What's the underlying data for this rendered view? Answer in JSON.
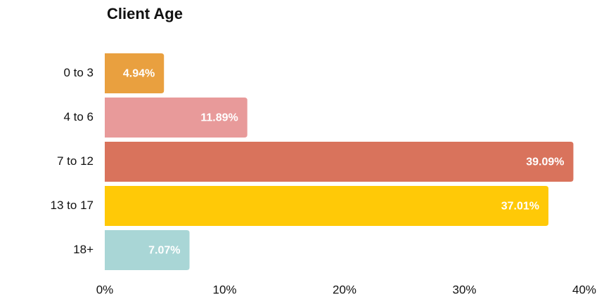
{
  "chart_data": {
    "type": "bar",
    "orientation": "horizontal",
    "title": "Client Age",
    "categories": [
      "0 to 3",
      "4 to 6",
      "7 to 12",
      "13 to 17",
      "18+"
    ],
    "values": [
      4.94,
      11.89,
      39.09,
      37.01,
      7.07
    ],
    "value_labels": [
      "4.94%",
      "11.89%",
      "39.09%",
      "37.01%",
      "7.07%"
    ],
    "colors": [
      "#e9a03f",
      "#e89a9a",
      "#d9735c",
      "#ffc907",
      "#a9d6d6"
    ],
    "xlim": [
      0,
      40
    ],
    "xticks": [
      {
        "value": 0,
        "label": "0%"
      },
      {
        "value": 10,
        "label": "10%"
      },
      {
        "value": 20,
        "label": "20%"
      },
      {
        "value": 30,
        "label": "30%"
      },
      {
        "value": 40,
        "label": "40%"
      }
    ],
    "grid": false
  }
}
